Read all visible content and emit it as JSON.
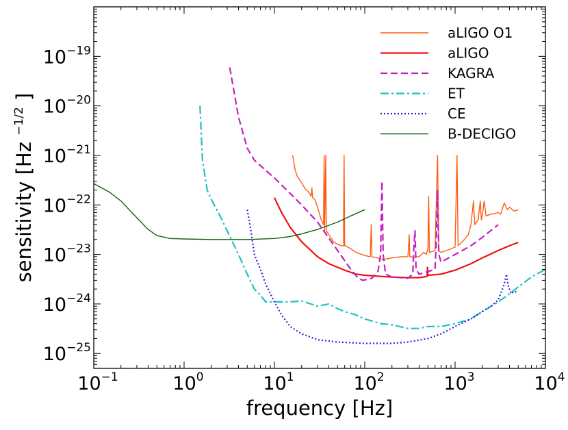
{
  "chart_data": {
    "type": "line",
    "title": "",
    "xlabel": "frequency [Hz]",
    "ylabel": "sensitivity [Hz",
    "ylabel_exp": "−1/2",
    "ylabel_close": "]",
    "xscale": "log",
    "yscale": "log",
    "xlim": [
      0.1,
      10000
    ],
    "ylim": [
      5e-26,
      1e-18
    ],
    "grid": false,
    "legend_position": "top-right",
    "x_ticks": [
      {
        "base": "10",
        "exp": "−1",
        "value": 0.1
      },
      {
        "base": "10",
        "exp": "0",
        "value": 1
      },
      {
        "base": "10",
        "exp": "1",
        "value": 10
      },
      {
        "base": "10",
        "exp": "2",
        "value": 100
      },
      {
        "base": "10",
        "exp": "3",
        "value": 1000
      },
      {
        "base": "10",
        "exp": "4",
        "value": 10000
      }
    ],
    "y_ticks": [
      {
        "base": "10",
        "exp": "−25",
        "value": 1e-25
      },
      {
        "base": "10",
        "exp": "−24",
        "value": 1e-24
      },
      {
        "base": "10",
        "exp": "−23",
        "value": 1e-23
      },
      {
        "base": "10",
        "exp": "−22",
        "value": 1e-22
      },
      {
        "base": "10",
        "exp": "−21",
        "value": 1e-21
      },
      {
        "base": "10",
        "exp": "−20",
        "value": 1e-20
      },
      {
        "base": "10",
        "exp": "−19",
        "value": 1e-19
      }
    ],
    "series": [
      {
        "name": "aLIGO O1",
        "color": "#ff5a0f",
        "style": "solid",
        "weight": "thin",
        "points": [
          [
            15.9,
            1e-21
          ],
          [
            17,
            5e-22
          ],
          [
            18,
            3.7e-22
          ],
          [
            20,
            2.8e-22
          ],
          [
            22,
            2.1e-22
          ],
          [
            24,
            1.8e-22
          ],
          [
            25.5,
            1.5e-22
          ],
          [
            26,
            2.2e-22
          ],
          [
            26.5,
            1.4e-22
          ],
          [
            28,
            1.3e-22
          ],
          [
            30,
            9e-23
          ],
          [
            33,
            5e-23
          ],
          [
            35,
            4e-23
          ],
          [
            35.5,
            1e-21
          ],
          [
            36,
            3e-23
          ],
          [
            37,
            1e-21
          ],
          [
            37.5,
            3e-23
          ],
          [
            40,
            2.5e-23
          ],
          [
            45,
            1.8e-23
          ],
          [
            50,
            1.6e-23
          ],
          [
            55,
            1.5e-23
          ],
          [
            58,
            1.5e-23
          ],
          [
            59,
            1e-21
          ],
          [
            60,
            1.5e-23
          ],
          [
            61,
            1.5e-23
          ],
          [
            70,
            1.3e-23
          ],
          [
            80,
            1.1e-23
          ],
          [
            100,
            9.5e-24
          ],
          [
            115,
            9e-24
          ],
          [
            118,
            4e-23
          ],
          [
            120,
            9e-24
          ],
          [
            140,
            8.5e-24
          ],
          [
            150,
            8e-24
          ],
          [
            160,
            8e-24
          ],
          [
            170,
            8e-24
          ],
          [
            180,
            8.2e-24
          ],
          [
            200,
            8.5e-24
          ],
          [
            250,
            9e-24
          ],
          [
            300,
            9e-24
          ],
          [
            306,
            1.5e-23
          ],
          [
            310,
            2.5e-23
          ],
          [
            315,
            9e-24
          ],
          [
            330,
            9e-24
          ],
          [
            350,
            8.5e-24
          ],
          [
            380,
            9e-24
          ],
          [
            400,
            9e-24
          ],
          [
            450,
            1.1e-23
          ],
          [
            480,
            1e-23
          ],
          [
            500,
            1.3e-23
          ],
          [
            510,
            1.5e-22
          ],
          [
            520,
            1.1e-23
          ],
          [
            600,
            1.2e-23
          ],
          [
            640,
            1e-21
          ],
          [
            660,
            1.2e-23
          ],
          [
            700,
            1.1e-23
          ],
          [
            800,
            1.2e-23
          ],
          [
            900,
            1.3e-23
          ],
          [
            1000,
            1.4e-23
          ],
          [
            1050,
            1e-21
          ],
          [
            1080,
            1.5e-23
          ],
          [
            1200,
            1.8e-23
          ],
          [
            1400,
            2.5e-23
          ],
          [
            1500,
            4e-23
          ],
          [
            1600,
            1.2e-22
          ],
          [
            1650,
            4e-23
          ],
          [
            1800,
            5e-23
          ],
          [
            1900,
            1.2e-22
          ],
          [
            1950,
            5e-23
          ],
          [
            2000,
            6e-23
          ],
          [
            2100,
            1.2e-22
          ],
          [
            2200,
            6e-23
          ],
          [
            2500,
            6.5e-23
          ],
          [
            3000,
            7e-23
          ],
          [
            3200,
            6.5e-23
          ],
          [
            3500,
            1.1e-22
          ],
          [
            3800,
            8e-23
          ],
          [
            4000,
            9e-23
          ],
          [
            4500,
            7.5e-23
          ],
          [
            5000,
            8e-23
          ]
        ]
      },
      {
        "name": "aLIGO",
        "color": "#f01010",
        "style": "solid",
        "weight": "thick",
        "points": [
          [
            10,
            1.4e-22
          ],
          [
            12,
            7e-23
          ],
          [
            15,
            3.5e-23
          ],
          [
            20,
            1.8e-23
          ],
          [
            30,
            9e-24
          ],
          [
            40,
            6.5e-24
          ],
          [
            60,
            4.8e-24
          ],
          [
            80,
            4e-24
          ],
          [
            100,
            3.8e-24
          ],
          [
            150,
            3.6e-24
          ],
          [
            200,
            3.5e-24
          ],
          [
            300,
            3.4e-24
          ],
          [
            400,
            3.4e-24
          ],
          [
            490,
            3.6e-24
          ],
          [
            495,
            5.5e-24
          ],
          [
            500,
            3.8e-24
          ],
          [
            700,
            4e-24
          ],
          [
            1000,
            4.8e-24
          ],
          [
            1500,
            6.5e-24
          ],
          [
            2000,
            8.5e-24
          ],
          [
            3000,
            1.2e-23
          ],
          [
            4000,
            1.5e-23
          ],
          [
            5000,
            1.75e-23
          ]
        ]
      },
      {
        "name": "KAGRA",
        "color": "#c020c0",
        "style": "dashed",
        "weight": "thick",
        "points": [
          [
            3.2,
            6e-20
          ],
          [
            4,
            6e-21
          ],
          [
            5,
            1.4e-21
          ],
          [
            6,
            8e-22
          ],
          [
            8,
            5e-22
          ],
          [
            10,
            3.5e-22
          ],
          [
            15,
            1.7e-22
          ],
          [
            20,
            1e-22
          ],
          [
            30,
            4.5e-23
          ],
          [
            50,
            1.2e-23
          ],
          [
            70,
            5e-24
          ],
          [
            85,
            3.3e-24
          ],
          [
            95,
            3e-24
          ],
          [
            120,
            3.3e-24
          ],
          [
            140,
            4.5e-24
          ],
          [
            150,
            1e-23
          ],
          [
            155,
            3e-22
          ],
          [
            160,
            1e-23
          ],
          [
            170,
            4e-24
          ],
          [
            200,
            3.5e-24
          ],
          [
            300,
            3.3e-24
          ],
          [
            340,
            4e-24
          ],
          [
            350,
            1.5e-23
          ],
          [
            360,
            3e-23
          ],
          [
            370,
            5e-24
          ],
          [
            400,
            4e-24
          ],
          [
            500,
            4.5e-24
          ],
          [
            600,
            5e-24
          ],
          [
            620,
            2e-23
          ],
          [
            640,
            2e-22
          ],
          [
            660,
            1e-23
          ],
          [
            700,
            7e-24
          ],
          [
            1000,
            1e-23
          ],
          [
            1500,
            1.5e-23
          ],
          [
            2000,
            2.2e-23
          ],
          [
            3000,
            4e-23
          ]
        ]
      },
      {
        "name": "ET",
        "color": "#20c0c0",
        "style": "dashdot",
        "weight": "thick",
        "points": [
          [
            1.5,
            1e-20
          ],
          [
            1.6,
            8e-22
          ],
          [
            1.8,
            2e-22
          ],
          [
            2,
            1.3e-22
          ],
          [
            2.5,
            6e-23
          ],
          [
            3,
            3e-23
          ],
          [
            4,
            1e-23
          ],
          [
            5,
            4e-24
          ],
          [
            6,
            2e-24
          ],
          [
            7,
            1.5e-24
          ],
          [
            8,
            1.1e-24
          ],
          [
            10,
            1.1e-24
          ],
          [
            15,
            1.1e-24
          ],
          [
            20,
            1.15e-24
          ],
          [
            30,
            9e-25
          ],
          [
            40,
            1e-24
          ],
          [
            50,
            8e-25
          ],
          [
            60,
            7e-25
          ],
          [
            80,
            6e-25
          ],
          [
            100,
            5e-25
          ],
          [
            150,
            4e-25
          ],
          [
            200,
            3.8e-25
          ],
          [
            300,
            3.2e-25
          ],
          [
            400,
            3.2e-25
          ],
          [
            500,
            3.5e-25
          ],
          [
            700,
            3.5e-25
          ],
          [
            1000,
            4e-25
          ],
          [
            1500,
            5e-25
          ],
          [
            2000,
            7e-25
          ],
          [
            3000,
            1.1e-24
          ],
          [
            4000,
            1.6e-24
          ],
          [
            5000,
            2.2e-24
          ],
          [
            7000,
            3.5e-24
          ],
          [
            10000,
            5e-24
          ]
        ]
      },
      {
        "name": "CE",
        "color": "#2020e0",
        "style": "dotted",
        "weight": "thick",
        "points": [
          [
            5,
            8e-23
          ],
          [
            5.5,
            3e-23
          ],
          [
            6,
            1e-23
          ],
          [
            7,
            5e-24
          ],
          [
            8,
            2.5e-24
          ],
          [
            10,
            1.1e-24
          ],
          [
            12,
            6e-25
          ],
          [
            15,
            3.5e-25
          ],
          [
            20,
            2.5e-25
          ],
          [
            30,
            1.9e-25
          ],
          [
            50,
            1.7e-25
          ],
          [
            100,
            1.6e-25
          ],
          [
            200,
            1.6e-25
          ],
          [
            300,
            1.7e-25
          ],
          [
            500,
            2e-25
          ],
          [
            700,
            2.5e-25
          ],
          [
            1000,
            3.5e-25
          ],
          [
            1500,
            5e-25
          ],
          [
            2000,
            7e-25
          ],
          [
            2500,
            9e-25
          ],
          [
            3000,
            1.2e-24
          ],
          [
            3500,
            2.5e-24
          ],
          [
            3700,
            4e-24
          ],
          [
            3900,
            2.2e-24
          ],
          [
            4200,
            1.6e-24
          ],
          [
            4500,
            1.8e-24
          ],
          [
            5000,
            1.7e-24
          ]
        ]
      },
      {
        "name": "B-DECIGO",
        "color": "#106010",
        "style": "solid",
        "weight": "thin",
        "points": [
          [
            0.1,
            2.7e-22
          ],
          [
            0.15,
            1.8e-22
          ],
          [
            0.2,
            1.2e-22
          ],
          [
            0.3,
            5.5e-23
          ],
          [
            0.4,
            3.2e-23
          ],
          [
            0.5,
            2.4e-23
          ],
          [
            0.7,
            2.1e-23
          ],
          [
            1,
            2.05e-23
          ],
          [
            2,
            2e-23
          ],
          [
            5,
            2e-23
          ],
          [
            10,
            2.1e-23
          ],
          [
            15,
            2.3e-23
          ],
          [
            20,
            2.6e-23
          ],
          [
            30,
            3.2e-23
          ],
          [
            50,
            4.5e-23
          ],
          [
            70,
            6e-23
          ],
          [
            100,
            8e-23
          ]
        ]
      }
    ]
  }
}
